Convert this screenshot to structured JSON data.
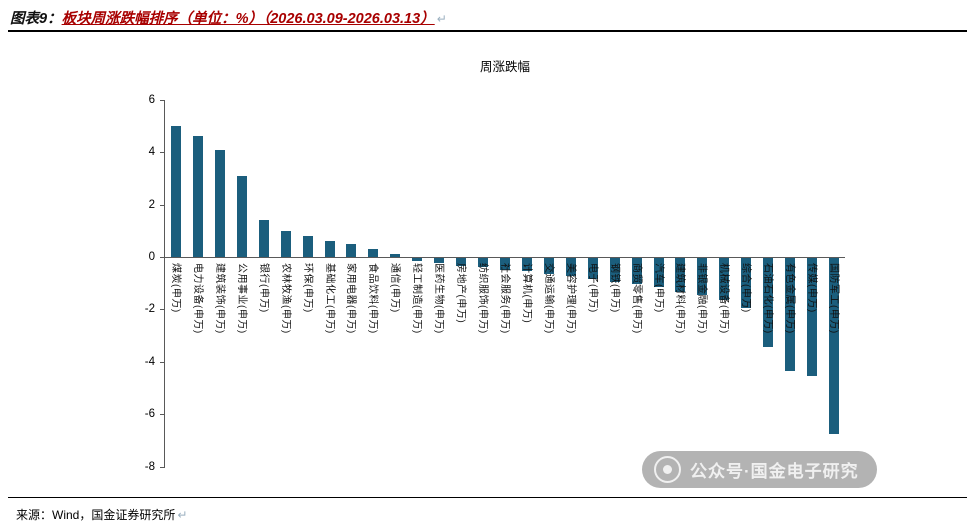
{
  "header": {
    "prefix": "图表9：",
    "title": "板块周涨跌幅排序（单位：%）（2026.03.09-2026.03.13）",
    "return_mark": "↵"
  },
  "chart_data": {
    "type": "bar",
    "title": "周涨跌幅",
    "unit": "%",
    "bar_color": "#1B5E7D",
    "grid": false,
    "legend": "none",
    "ylim": [
      -8,
      6
    ],
    "yticks": [
      6,
      4,
      2,
      0,
      -2,
      -4,
      -6,
      -8
    ],
    "categories": [
      "煤炭(申万)",
      "电力设备(申万)",
      "建筑装饰(申万)",
      "公用事业(申万)",
      "银行(申万)",
      "农林牧渔(申万)",
      "环保(申万)",
      "基础化工(申万)",
      "家用电器(申万)",
      "食品饮料(申万)",
      "通信(申万)",
      "轻工制造(申万)",
      "医药生物(申万)",
      "房地产(申万)",
      "纺织服饰(申万)",
      "社会服务(申万)",
      "计算机(申万)",
      "交通运输(申万)",
      "美容护理(申万)",
      "电子(申万)",
      "钢铁(申万)",
      "商贸零售(申万)",
      "汽车(申万)",
      "建筑材料(申万)",
      "非银金融(申万)",
      "机械设备(申万)",
      "综合(申万)",
      "石油石化(申万)",
      "有色金属(申万)",
      "传媒(申万)",
      "国防军工(申万)"
    ],
    "values": [
      5.0,
      4.6,
      4.1,
      3.1,
      1.4,
      1.0,
      0.8,
      0.6,
      0.5,
      0.3,
      0.1,
      -0.1,
      -0.2,
      -0.3,
      -0.35,
      -0.45,
      -0.5,
      -0.6,
      -0.7,
      -0.8,
      -0.9,
      -1.0,
      -1.1,
      -1.3,
      -1.4,
      -1.6,
      -1.9,
      -3.4,
      -4.3,
      -4.5,
      -6.7
    ]
  },
  "watermark": {
    "text": "公众号·国金电子研究"
  },
  "footer": {
    "source": "来源：Wind，国金证券研究所",
    "return_mark": "↵"
  }
}
